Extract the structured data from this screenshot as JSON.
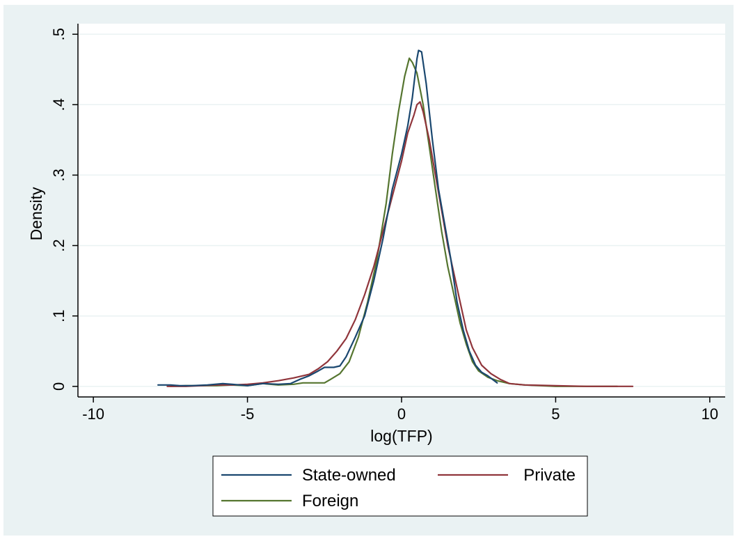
{
  "chart_data": {
    "type": "line",
    "title": "",
    "xlabel": "log(TFP)",
    "ylabel": "Density",
    "xlim": [
      -10.5,
      10.5
    ],
    "ylim": [
      -0.015,
      0.515
    ],
    "xticks": [
      -10,
      -5,
      0,
      5,
      10
    ],
    "xtick_labels": [
      "-10",
      "-5",
      "0",
      "5",
      "10"
    ],
    "yticks": [
      0,
      0.1,
      0.2,
      0.3,
      0.4,
      0.5
    ],
    "ytick_labels": [
      "0",
      ".1",
      ".2",
      ".3",
      ".4",
      ".5"
    ],
    "grid": "horizontal",
    "legend_position": "bottom",
    "series": [
      {
        "name": "State-owned",
        "color": "#1a476f",
        "points": [
          [
            -7.9,
            0.002
          ],
          [
            -7.5,
            0.002
          ],
          [
            -7.2,
            0.001
          ],
          [
            -6.8,
            0.001
          ],
          [
            -6.3,
            0.002
          ],
          [
            -5.8,
            0.004
          ],
          [
            -5.5,
            0.003
          ],
          [
            -5.0,
            0.001
          ],
          [
            -4.5,
            0.004
          ],
          [
            -4.0,
            0.003
          ],
          [
            -3.6,
            0.004
          ],
          [
            -3.3,
            0.01
          ],
          [
            -3.0,
            0.015
          ],
          [
            -2.7,
            0.022
          ],
          [
            -2.5,
            0.027
          ],
          [
            -2.2,
            0.027
          ],
          [
            -2.0,
            0.029
          ],
          [
            -1.8,
            0.042
          ],
          [
            -1.5,
            0.07
          ],
          [
            -1.2,
            0.1
          ],
          [
            -0.9,
            0.15
          ],
          [
            -0.6,
            0.21
          ],
          [
            -0.3,
            0.28
          ],
          [
            0.0,
            0.33
          ],
          [
            0.2,
            0.37
          ],
          [
            0.35,
            0.41
          ],
          [
            0.5,
            0.465
          ],
          [
            0.55,
            0.477
          ],
          [
            0.65,
            0.475
          ],
          [
            0.8,
            0.43
          ],
          [
            1.0,
            0.35
          ],
          [
            1.2,
            0.28
          ],
          [
            1.4,
            0.23
          ],
          [
            1.6,
            0.18
          ],
          [
            1.8,
            0.12
          ],
          [
            2.0,
            0.08
          ],
          [
            2.2,
            0.05
          ],
          [
            2.4,
            0.03
          ],
          [
            2.6,
            0.02
          ],
          [
            2.8,
            0.015
          ],
          [
            3.1,
            0.005
          ]
        ]
      },
      {
        "name": "Private",
        "color": "#90353b",
        "points": [
          [
            -7.6,
            0.0
          ],
          [
            -7.0,
            0.0
          ],
          [
            -6.5,
            0.001
          ],
          [
            -6.0,
            0.002
          ],
          [
            -5.5,
            0.002
          ],
          [
            -5.0,
            0.003
          ],
          [
            -4.5,
            0.005
          ],
          [
            -4.0,
            0.008
          ],
          [
            -3.5,
            0.012
          ],
          [
            -3.0,
            0.017
          ],
          [
            -2.7,
            0.025
          ],
          [
            -2.4,
            0.035
          ],
          [
            -2.1,
            0.05
          ],
          [
            -1.8,
            0.068
          ],
          [
            -1.5,
            0.095
          ],
          [
            -1.2,
            0.13
          ],
          [
            -0.9,
            0.17
          ],
          [
            -0.6,
            0.22
          ],
          [
            -0.3,
            0.27
          ],
          [
            0.0,
            0.32
          ],
          [
            0.2,
            0.36
          ],
          [
            0.4,
            0.385
          ],
          [
            0.5,
            0.4
          ],
          [
            0.6,
            0.404
          ],
          [
            0.7,
            0.39
          ],
          [
            0.9,
            0.35
          ],
          [
            1.1,
            0.3
          ],
          [
            1.3,
            0.25
          ],
          [
            1.5,
            0.2
          ],
          [
            1.7,
            0.16
          ],
          [
            1.9,
            0.12
          ],
          [
            2.1,
            0.08
          ],
          [
            2.3,
            0.055
          ],
          [
            2.6,
            0.03
          ],
          [
            2.9,
            0.018
          ],
          [
            3.2,
            0.01
          ],
          [
            3.5,
            0.004
          ],
          [
            4.0,
            0.002
          ],
          [
            5.0,
            0.001
          ],
          [
            6.0,
            0.0
          ],
          [
            7.0,
            0.0
          ],
          [
            7.5,
            0.0
          ]
        ]
      },
      {
        "name": "Foreign",
        "color": "#55752f",
        "points": [
          [
            -7.5,
            0.0
          ],
          [
            -7.0,
            0.001
          ],
          [
            -6.5,
            0.001
          ],
          [
            -6.0,
            0.001
          ],
          [
            -5.5,
            0.002
          ],
          [
            -5.0,
            0.001
          ],
          [
            -4.5,
            0.004
          ],
          [
            -4.0,
            0.002
          ],
          [
            -3.5,
            0.003
          ],
          [
            -3.2,
            0.005
          ],
          [
            -2.8,
            0.005
          ],
          [
            -2.5,
            0.005
          ],
          [
            -2.3,
            0.01
          ],
          [
            -2.0,
            0.018
          ],
          [
            -1.7,
            0.035
          ],
          [
            -1.4,
            0.07
          ],
          [
            -1.1,
            0.12
          ],
          [
            -0.8,
            0.18
          ],
          [
            -0.5,
            0.26
          ],
          [
            -0.3,
            0.33
          ],
          [
            -0.1,
            0.39
          ],
          [
            0.1,
            0.44
          ],
          [
            0.25,
            0.466
          ],
          [
            0.35,
            0.46
          ],
          [
            0.5,
            0.445
          ],
          [
            0.7,
            0.4
          ],
          [
            0.9,
            0.34
          ],
          [
            1.1,
            0.28
          ],
          [
            1.3,
            0.22
          ],
          [
            1.5,
            0.17
          ],
          [
            1.7,
            0.13
          ],
          [
            1.9,
            0.09
          ],
          [
            2.1,
            0.06
          ],
          [
            2.3,
            0.035
          ],
          [
            2.5,
            0.022
          ],
          [
            2.8,
            0.013
          ],
          [
            3.1,
            0.008
          ],
          [
            3.5,
            0.004
          ],
          [
            4.0,
            0.002
          ],
          [
            5.0,
            0.0
          ],
          [
            6.0,
            0.0
          ],
          [
            7.0,
            0.0
          ]
        ]
      }
    ]
  }
}
